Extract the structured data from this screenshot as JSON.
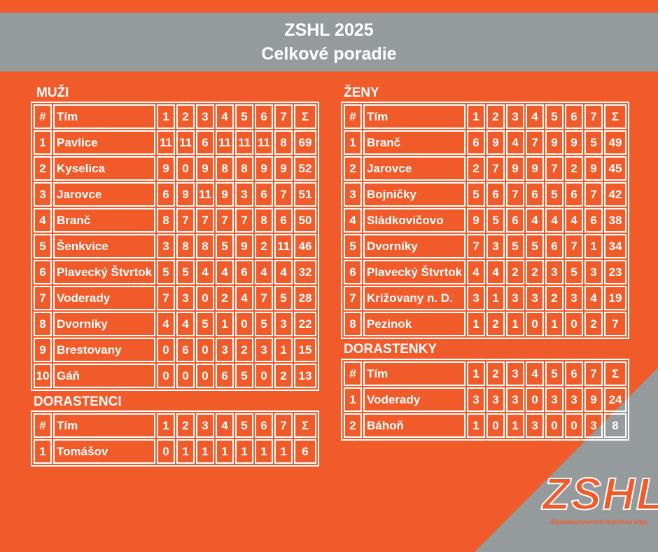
{
  "header": {
    "title": "ZSHL 2025",
    "subtitle": "Celkové poradie"
  },
  "colors": {
    "orange": "#f15a29",
    "gray": "#959b9d",
    "white": "#ffffff"
  },
  "columns": [
    "#",
    "Tím",
    "1",
    "2",
    "3",
    "4",
    "5",
    "6",
    "7",
    "Σ"
  ],
  "tables": {
    "muzi": {
      "title": "MUŽI",
      "rows": [
        [
          "1",
          "Pavlice",
          "11",
          "11",
          "6",
          "11",
          "11",
          "11",
          "8",
          "69"
        ],
        [
          "2",
          "Kyselica",
          "9",
          "0",
          "9",
          "8",
          "8",
          "9",
          "9",
          "52"
        ],
        [
          "3",
          "Jarovce",
          "6",
          "9",
          "11",
          "9",
          "3",
          "6",
          "7",
          "51"
        ],
        [
          "4",
          "Branč",
          "8",
          "7",
          "7",
          "7",
          "7",
          "8",
          "6",
          "50"
        ],
        [
          "5",
          "Šenkvice",
          "3",
          "8",
          "8",
          "5",
          "9",
          "2",
          "11",
          "46"
        ],
        [
          "6",
          "Plavecký Štvrtok",
          "5",
          "5",
          "4",
          "4",
          "6",
          "4",
          "4",
          "32"
        ],
        [
          "7",
          "Voderady",
          "7",
          "3",
          "0",
          "2",
          "4",
          "7",
          "5",
          "28"
        ],
        [
          "8",
          "Dvorníky",
          "4",
          "4",
          "5",
          "1",
          "0",
          "5",
          "3",
          "22"
        ],
        [
          "9",
          "Brestovany",
          "0",
          "6",
          "0",
          "3",
          "2",
          "3",
          "1",
          "15"
        ],
        [
          "10",
          "Gáň",
          "0",
          "0",
          "0",
          "6",
          "5",
          "0",
          "2",
          "13"
        ]
      ]
    },
    "dorastenci": {
      "title": "DORASTENCI",
      "rows": [
        [
          "1",
          "Tomášov",
          "0",
          "1",
          "1",
          "1",
          "1",
          "1",
          "1",
          "6"
        ]
      ]
    },
    "zeny": {
      "title": "ŽENY",
      "rows": [
        [
          "1",
          "Branč",
          "6",
          "9",
          "4",
          "7",
          "9",
          "9",
          "5",
          "49"
        ],
        [
          "2",
          "Jarovce",
          "2",
          "7",
          "9",
          "9",
          "7",
          "2",
          "9",
          "45"
        ],
        [
          "3",
          "Bojničky",
          "5",
          "6",
          "7",
          "6",
          "5",
          "6",
          "7",
          "42"
        ],
        [
          "4",
          "Sládkovičovo",
          "9",
          "5",
          "6",
          "4",
          "4",
          "4",
          "6",
          "38"
        ],
        [
          "5",
          "Dvorníky",
          "7",
          "3",
          "5",
          "5",
          "6",
          "7",
          "1",
          "34"
        ],
        [
          "6",
          "Plavecký Štvrtok",
          "4",
          "4",
          "2",
          "2",
          "3",
          "5",
          "3",
          "23"
        ],
        [
          "7",
          "Križovany n. D.",
          "3",
          "1",
          "3",
          "3",
          "2",
          "3",
          "4",
          "19"
        ],
        [
          "8",
          "Pezinok",
          "1",
          "2",
          "1",
          "0",
          "1",
          "0",
          "2",
          "7"
        ]
      ]
    },
    "dorastenky": {
      "title": "DORASTENKY",
      "rows": [
        [
          "1",
          "Voderady",
          "3",
          "3",
          "3",
          "0",
          "3",
          "3",
          "9",
          "24"
        ],
        [
          "2",
          "Báhoň",
          "1",
          "0",
          "1",
          "3",
          "0",
          "0",
          "3",
          "8"
        ]
      ]
    }
  },
  "logo": {
    "text": "ZSHL",
    "subtitle": "Západoslovenská Hasičská Liga"
  }
}
